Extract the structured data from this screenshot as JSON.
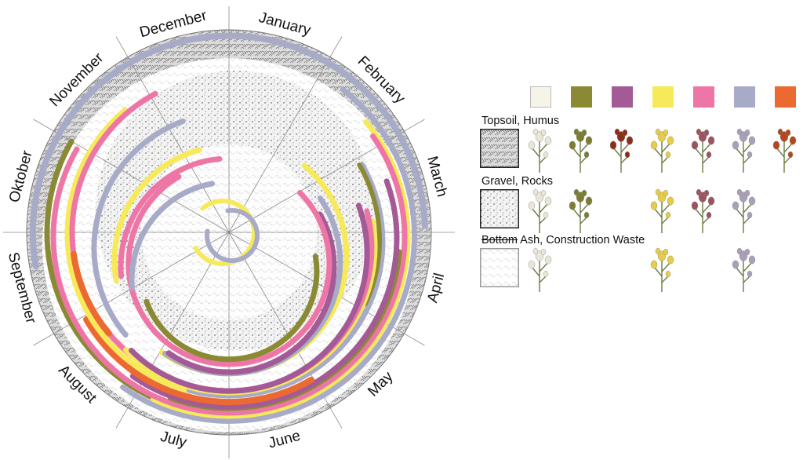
{
  "months": [
    "January",
    "February",
    "March",
    "April",
    "May",
    "June",
    "July",
    "August",
    "September",
    "Oktober",
    "November",
    "December"
  ],
  "colors": {
    "cream": "#f6f4e7",
    "olive": "#8a8a34",
    "purple": "#a45a96",
    "yellow": "#f7ea5a",
    "pink": "#ee76a6",
    "lavender": "#a7abc7",
    "orange": "#ec6a32"
  },
  "legend": {
    "swatches": [
      "cream",
      "olive",
      "purple",
      "yellow",
      "pink",
      "lavender",
      "orange"
    ],
    "substrates": [
      {
        "title": "Topsoil, Humus",
        "texture": "dense",
        "plants": [
          "white-flower-sprig-icon",
          "olive-bloom-spike-icon",
          "dark-red-seed-cluster-icon",
          "yellow-flower-sprig-icon",
          "pink-thistle-head-icon",
          "lavender-herb-spike-icon",
          "orange-seed-stalk-icon"
        ]
      },
      {
        "title": "Gravel, Rocks",
        "texture": "dots",
        "plants": [
          "white-flower-sprig-icon",
          "olive-bloom-spike-icon",
          "",
          "yellow-flower-sprig-icon",
          "pink-thistle-head-icon",
          "lavender-herb-spike-icon",
          ""
        ]
      },
      {
        "title_struck": "Bottom",
        "title": " Ash, Construction Waste",
        "texture": "light",
        "plants": [
          "white-flower-sprig-icon",
          "",
          "",
          "yellow-flower-sprig-icon",
          "",
          "lavender-herb-spike-icon",
          ""
        ]
      }
    ]
  }
}
